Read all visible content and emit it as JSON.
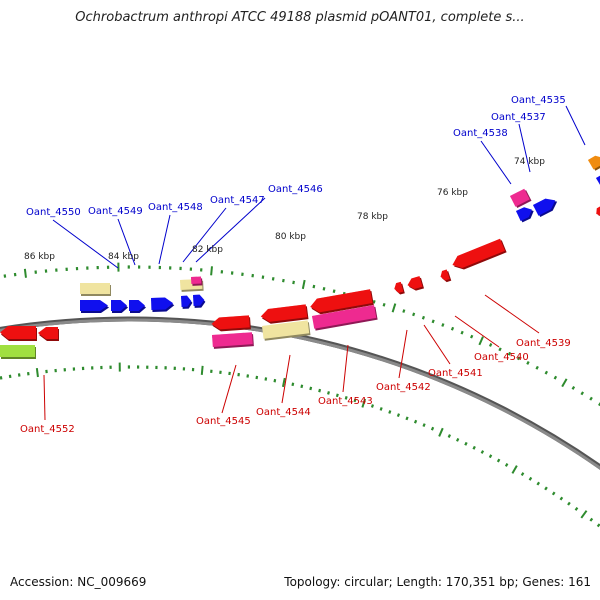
{
  "title": "Ochrobactrum anthropi ATCC 49188 plasmid pOANT01, complete s...",
  "footer": {
    "accession": "Accession: NC_009669",
    "summary": "Topology: circular; Length: 170,351 bp; Genes: 161"
  },
  "colors": {
    "backbone": "#8a8a8a",
    "ticks": "#2e8b2e",
    "forward_label": "#0000cc",
    "reverse_label": "#cc0000",
    "gene_blue": "#1010ee",
    "gene_red": "#ee1010",
    "gene_pink": "#ee2a90",
    "gene_yellow": "#f0e4a0",
    "gene_green": "#a0e040",
    "gene_orange": "#f08c10"
  },
  "scale_labels": [
    "86 kbp",
    "84 kbp",
    "82 kbp",
    "80 kbp",
    "78 kbp",
    "76 kbp",
    "74 kbp"
  ],
  "forward_gene_labels": [
    "Oant_4535",
    "Oant_4537",
    "Oant_4538",
    "Oant_4546",
    "Oant_4547",
    "Oant_4548",
    "Oant_4549",
    "Oant_4550"
  ],
  "reverse_gene_labels": [
    "Oant_4539",
    "Oant_4540",
    "Oant_4541",
    "Oant_4542",
    "Oant_4543",
    "Oant_4544",
    "Oant_4545",
    "Oant_4552"
  ]
}
